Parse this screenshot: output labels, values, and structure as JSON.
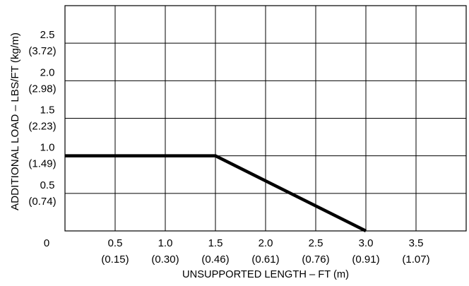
{
  "chart_data": {
    "type": "line",
    "xlabel": "UNSUPPORTED LENGTH – FT (m)",
    "ylabel": "ADDITIONAL LOAD – LBS/FT (kg/m)",
    "xlim": [
      0,
      4
    ],
    "ylim": [
      0,
      3
    ],
    "grid": true,
    "origin_label": "0",
    "x_ticks": [
      {
        "value": 0.5,
        "label": "0.5",
        "sublabel": "(0.15)"
      },
      {
        "value": 1.0,
        "label": "1.0",
        "sublabel": "(0.30)"
      },
      {
        "value": 1.5,
        "label": "1.5",
        "sublabel": "(0.46)"
      },
      {
        "value": 2.0,
        "label": "2.0",
        "sublabel": "(0.61)"
      },
      {
        "value": 2.5,
        "label": "2.5",
        "sublabel": "(0.76)"
      },
      {
        "value": 3.0,
        "label": "3.0",
        "sublabel": "(0.91)"
      },
      {
        "value": 3.5,
        "label": "3.5",
        "sublabel": "(1.07)"
      }
    ],
    "y_ticks": [
      {
        "value": 0.5,
        "label": "0.5",
        "sublabel": "(0.74)"
      },
      {
        "value": 1.0,
        "label": "1.0",
        "sublabel": "(1.49)"
      },
      {
        "value": 1.5,
        "label": "1.5",
        "sublabel": "(2.23)"
      },
      {
        "value": 2.0,
        "label": "2.0",
        "sublabel": "(2.98)"
      },
      {
        "value": 2.5,
        "label": "2.5",
        "sublabel": "(3.72)"
      }
    ],
    "series": [
      {
        "x": [
          0,
          1.5,
          3.0
        ],
        "y": [
          1.0,
          1.0,
          0
        ],
        "color": "#000000"
      }
    ]
  }
}
